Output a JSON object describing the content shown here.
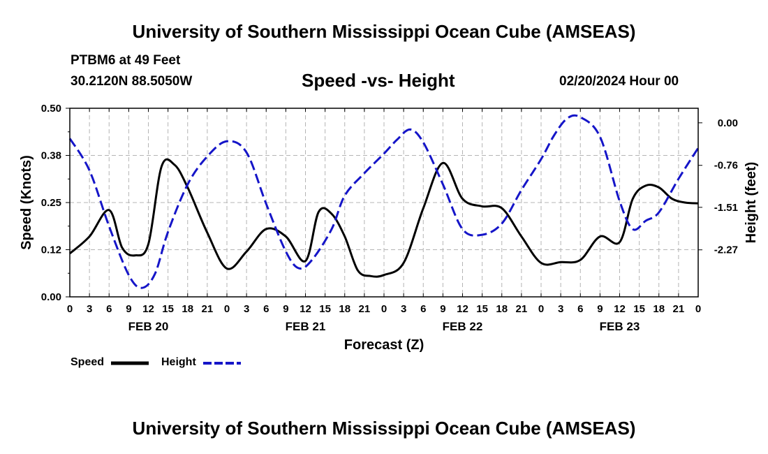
{
  "header": {
    "title": "University of Southern Mississippi Ocean Cube (AMSEAS)",
    "station": "PTBM6 at 49 Feet",
    "coords": "30.2120N  88.5050W",
    "subtitle": "Speed -vs- Height",
    "datetime": "02/20/2024 Hour 00"
  },
  "footer": {
    "title": "University of Southern Mississippi Ocean Cube (AMSEAS)"
  },
  "legend": {
    "speed_label": "Speed",
    "height_label": "Height"
  },
  "colors": {
    "speed": "#000000",
    "height": "#1515c8",
    "grid": "#b4b4b4"
  },
  "chart_data": {
    "type": "line",
    "title": "Speed -vs- Height",
    "xlabel": "Forecast (Z)",
    "ylabel": "Speed (Knots)",
    "y2label": "Height (feet)",
    "xlim": [
      0,
      96
    ],
    "ylim": [
      0,
      0.5
    ],
    "y2lim": [
      -3.11,
      0.26
    ],
    "x_ticks": [
      0,
      3,
      6,
      9,
      12,
      15,
      18,
      21,
      24,
      27,
      30,
      33,
      36,
      39,
      42,
      45,
      48,
      51,
      54,
      57,
      60,
      63,
      66,
      69,
      72,
      75,
      78,
      81,
      84,
      87,
      90,
      93,
      96
    ],
    "x_tick_labels": [
      "0",
      "3",
      "6",
      "9",
      "12",
      "15",
      "18",
      "21",
      "0",
      "3",
      "6",
      "9",
      "12",
      "15",
      "18",
      "21",
      "0",
      "3",
      "6",
      "9",
      "12",
      "15",
      "18",
      "21",
      "0",
      "3",
      "6",
      "9",
      "12",
      "15",
      "18",
      "21",
      "0"
    ],
    "day_labels": [
      {
        "x": 12,
        "label": "FEB 20"
      },
      {
        "x": 36,
        "label": "FEB 21"
      },
      {
        "x": 60,
        "label": "FEB 22"
      },
      {
        "x": 84,
        "label": "FEB 23"
      }
    ],
    "y_ticks": [
      0,
      0.125,
      0.25,
      0.375,
      0.5
    ],
    "y_tick_labels": [
      "0.00",
      "0.12",
      "0.25",
      "0.38",
      "0.50"
    ],
    "y2_ticks": [
      0,
      -0.76,
      -1.51,
      -2.27
    ],
    "y2_tick_labels": [
      "0.00",
      "-0.76",
      "-1.51",
      "-2.27"
    ],
    "series": [
      {
        "name": "Speed",
        "axis": "left",
        "style": "solid",
        "x": [
          0,
          3,
          6,
          8,
          10,
          12,
          14,
          16,
          18,
          21,
          24,
          27,
          30,
          33,
          36,
          38,
          40,
          42,
          44,
          46,
          48,
          51,
          54,
          57,
          60,
          63,
          66,
          69,
          72,
          75,
          78,
          81,
          84,
          86,
          88,
          90,
          92,
          94,
          96
        ],
        "values": [
          0.115,
          0.16,
          0.23,
          0.13,
          0.11,
          0.14,
          0.345,
          0.35,
          0.29,
          0.17,
          0.075,
          0.12,
          0.18,
          0.16,
          0.095,
          0.225,
          0.22,
          0.16,
          0.07,
          0.055,
          0.058,
          0.09,
          0.235,
          0.355,
          0.26,
          0.24,
          0.235,
          0.16,
          0.09,
          0.092,
          0.098,
          0.16,
          0.145,
          0.26,
          0.295,
          0.29,
          0.26,
          0.25,
          0.248
        ]
      },
      {
        "name": "Height",
        "axis": "right",
        "style": "dashed",
        "x": [
          0,
          3,
          6,
          9,
          11,
          13,
          15,
          18,
          21,
          24,
          27,
          30,
          33,
          35,
          37,
          40,
          42,
          45,
          48,
          50,
          52,
          54,
          57,
          60,
          63,
          66,
          69,
          72,
          74,
          76,
          78,
          81,
          84,
          86,
          88,
          90,
          93,
          96
        ],
        "values": [
          -0.28,
          -0.85,
          -1.85,
          -2.72,
          -2.95,
          -2.7,
          -1.95,
          -1.1,
          -0.6,
          -0.33,
          -0.53,
          -1.45,
          -2.3,
          -2.6,
          -2.45,
          -1.9,
          -1.3,
          -0.9,
          -0.55,
          -0.3,
          -0.12,
          -0.35,
          -1.1,
          -1.9,
          -2.0,
          -1.8,
          -1.2,
          -0.65,
          -0.22,
          0.08,
          0.1,
          -0.25,
          -1.4,
          -1.9,
          -1.75,
          -1.6,
          -1.0,
          -0.45
        ]
      }
    ]
  }
}
